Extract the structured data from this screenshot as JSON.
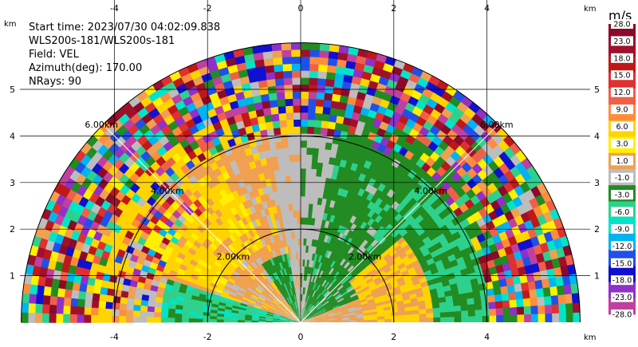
{
  "info": {
    "start_time": "Start time: 2023/07/30 04:02:09.838",
    "instrument": "WLS200s-181/WLS200s-181",
    "field": "Field: VEL",
    "azimuth": "Azimuth(deg): 170.00",
    "nrays": "NRays: 90"
  },
  "axes": {
    "x_ticks": [
      -4,
      -2,
      0,
      2,
      4
    ],
    "y_ticks": [
      1,
      2,
      3,
      4,
      5
    ],
    "x_unit": "km",
    "y_unit": "km"
  },
  "range_rings": [
    {
      "radius_km": 2,
      "label": "2.00km"
    },
    {
      "radius_km": 4,
      "label": "4.00km"
    },
    {
      "radius_km": 6,
      "label": "6.00km"
    }
  ],
  "colorbar": {
    "unit": "m/s",
    "ticks": [
      "28.0",
      "23.0",
      "18.0",
      "15.0",
      "12.0",
      "9.0",
      "6.0",
      "3.0",
      "1.0",
      "-1.0",
      "-3.0",
      "-6.0",
      "-9.0",
      "-12.0",
      "-15.0",
      "-18.0",
      "-23.0",
      "-28.0"
    ],
    "colors": [
      "#8b0a2a",
      "#a0102a",
      "#c01818",
      "#e03030",
      "#f06048",
      "#ff8c3c",
      "#ffd400",
      "#fff000",
      "#f0a050",
      "#bdbdbd",
      "#228b22",
      "#2ed18c",
      "#00e5c8",
      "#00b4f0",
      "#2050e8",
      "#1010d0",
      "#9030c8",
      "#c040a0"
    ]
  },
  "chart_data": {
    "type": "heatmap",
    "field": "VEL",
    "unit": "m/s",
    "azimuth_deg": 170.0,
    "n_rays": 90,
    "sweep": "PPI half-disk (0-180 deg)",
    "x_range_km": [
      -6.3,
      6.3
    ],
    "y_range_km": [
      0,
      6.0
    ],
    "x_ticks": [
      -4,
      -2,
      0,
      2,
      4
    ],
    "y_ticks": [
      1,
      2,
      3,
      4,
      5
    ],
    "range_rings_km": [
      2,
      4,
      6
    ],
    "color_levels_m_s": [
      28,
      23,
      18,
      15,
      12,
      9,
      6,
      3,
      1,
      -1,
      -3,
      -6,
      -9,
      -12,
      -15,
      -18,
      -23,
      -28
    ]
  }
}
